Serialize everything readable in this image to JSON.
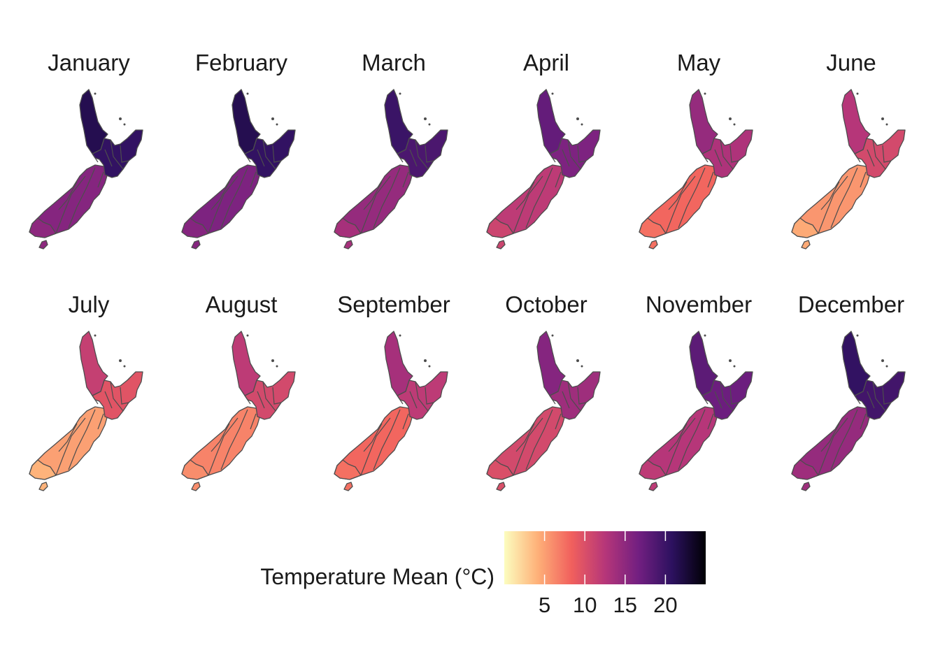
{
  "months": [
    {
      "name": "January",
      "north": 20.5,
      "northland": 21.5,
      "south": 15.5,
      "southland": 15.0
    },
    {
      "name": "February",
      "north": 20.5,
      "northland": 21.5,
      "south": 16.0,
      "southland": 15.5
    },
    {
      "name": "March",
      "north": 19.0,
      "northland": 20.0,
      "south": 14.5,
      "southland": 13.5
    },
    {
      "name": "April",
      "north": 16.0,
      "northland": 17.5,
      "south": 12.0,
      "southland": 11.0
    },
    {
      "name": "May",
      "north": 13.0,
      "northland": 14.5,
      "south": 8.0,
      "southland": 7.5
    },
    {
      "name": "June",
      "north": 10.5,
      "northland": 12.5,
      "south": 5.5,
      "southland": 4.5
    },
    {
      "name": "July",
      "north": 9.5,
      "northland": 11.5,
      "south": 5.0,
      "southland": 4.0
    },
    {
      "name": "August",
      "north": 10.5,
      "northland": 12.0,
      "south": 6.5,
      "southland": 6.0
    },
    {
      "name": "September",
      "north": 12.0,
      "northland": 13.5,
      "south": 8.0,
      "southland": 7.5
    },
    {
      "name": "October",
      "north": 14.0,
      "northland": 15.5,
      "south": 10.5,
      "southland": 10.0
    },
    {
      "name": "November",
      "north": 17.0,
      "northland": 18.0,
      "south": 12.5,
      "southland": 12.0
    },
    {
      "name": "December",
      "north": 19.5,
      "northland": 20.5,
      "south": 14.5,
      "southland": 14.0
    }
  ],
  "legend": {
    "title": "Temperature Mean (°C)",
    "range": [
      0,
      25
    ],
    "ticks": [
      5,
      10,
      15,
      20
    ],
    "tick_labels": [
      "5",
      "10",
      "15",
      "20"
    ],
    "palette": [
      "#fcfdbf",
      "#feb078",
      "#f1605d",
      "#b63679",
      "#721f81",
      "#2c115f",
      "#000004"
    ]
  },
  "colors": {
    "border": "#4d4d4d"
  }
}
